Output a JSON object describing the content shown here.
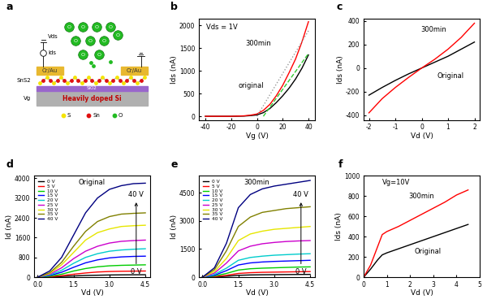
{
  "diagram": {
    "panel": "a",
    "labels": {
      "vds": "Vds",
      "ids": "Ids",
      "electrode": "Cr/Au",
      "channel": "SnS2",
      "oxide": "SiO2",
      "substrate": "Heavily doped Si",
      "vg": "Vg"
    },
    "molecule_label": "O",
    "atoms": [
      {
        "symbol": "S",
        "color": "#f5e400"
      },
      {
        "symbol": "Sn",
        "color": "#e01010"
      },
      {
        "symbol": "O",
        "color": "#22bb22"
      }
    ]
  },
  "chart_data": [
    {
      "panel": "b",
      "type": "line",
      "x_label": "Vg (V)",
      "y_label": "Ids (nA)",
      "xlim": [
        -45,
        45
      ],
      "ylim": [
        -80,
        2150
      ],
      "xticks": [
        -40,
        -20,
        0,
        20,
        40
      ],
      "yticks": [
        0,
        500,
        1000,
        1500,
        2000
      ],
      "annotations": [
        "Vds = 1V",
        "300min",
        "original"
      ],
      "series": [
        {
          "color": "#000000",
          "line_style": "solid",
          "x": [
            -40,
            -30,
            -20,
            -10,
            -5,
            0,
            5,
            10,
            15,
            20,
            25,
            30,
            35,
            40
          ],
          "values": [
            0,
            0,
            0,
            5,
            15,
            30,
            80,
            170,
            300,
            450,
            620,
            820,
            1060,
            1350
          ]
        },
        {
          "color": "#ff0000",
          "line_style": "solid",
          "x": [
            -40,
            -30,
            -20,
            -10,
            -5,
            0,
            5,
            10,
            15,
            20,
            25,
            30,
            35,
            40
          ],
          "values": [
            0,
            0,
            0,
            10,
            25,
            50,
            130,
            260,
            450,
            680,
            960,
            1260,
            1640,
            2080
          ]
        },
        {
          "color": "#33cc33",
          "line_style": "dashed",
          "x": [
            5,
            40
          ],
          "values": [
            0,
            1380
          ]
        },
        {
          "color": "#999999",
          "line_style": "dotted",
          "x": [
            0,
            40
          ],
          "values": [
            0,
            1880
          ]
        }
      ]
    },
    {
      "panel": "c",
      "type": "line",
      "x_label": "Vd (V)",
      "y_label": "Ids (nA)",
      "xlim": [
        -2.2,
        2.2
      ],
      "ylim": [
        -440,
        420
      ],
      "xticks": [
        -2,
        -1,
        0,
        1,
        2
      ],
      "yticks": [
        -400,
        -200,
        0,
        200,
        400
      ],
      "annotations": [
        "300min",
        "Original"
      ],
      "x": [
        -2,
        -1.5,
        -1,
        -0.5,
        0,
        0.5,
        1,
        1.5,
        2
      ],
      "series": [
        {
          "color": "#000000",
          "line_style": "solid",
          "values": [
            -230,
            -165,
            -105,
            -50,
            0,
            50,
            100,
            160,
            220
          ]
        },
        {
          "color": "#ff0000",
          "line_style": "solid",
          "values": [
            -380,
            -260,
            -165,
            -80,
            0,
            75,
            160,
            260,
            380
          ]
        }
      ]
    },
    {
      "panel": "d",
      "type": "line",
      "x_label": "Vd (V)",
      "y_label": "Id (nA)",
      "xlim": [
        -0.15,
        4.7
      ],
      "ylim": [
        0,
        4100
      ],
      "xticks": [
        {
          "value": 0,
          "label": "0.0"
        },
        1.5,
        {
          "value": 3,
          "label": "3.0"
        },
        4.5
      ],
      "yticks": [
        0,
        800,
        1600,
        2400,
        3200,
        4000
      ],
      "legend": "upper left",
      "annotations": [
        "Original",
        "0 V",
        "40 V"
      ],
      "x": [
        0,
        0.5,
        1,
        1.5,
        2,
        2.5,
        3,
        3.5,
        4,
        4.5
      ],
      "series": [
        {
          "name": "0 V",
          "color": "#000000",
          "values": [
            0,
            10,
            30,
            50,
            70,
            80,
            90,
            95,
            98,
            100
          ]
        },
        {
          "name": "5 V",
          "color": "#ff0000",
          "values": [
            0,
            20,
            60,
            120,
            170,
            210,
            230,
            240,
            245,
            250
          ]
        },
        {
          "name": "10 V",
          "color": "#00cc00",
          "values": [
            0,
            40,
            120,
            250,
            350,
            420,
            460,
            480,
            490,
            500
          ]
        },
        {
          "name": "15 V",
          "color": "#0000ff",
          "values": [
            0,
            70,
            200,
            400,
            580,
            700,
            780,
            820,
            840,
            850
          ]
        },
        {
          "name": "20 V",
          "color": "#00cccc",
          "values": [
            0,
            90,
            280,
            560,
            800,
            950,
            1050,
            1100,
            1130,
            1150
          ]
        },
        {
          "name": "25 V",
          "color": "#cc00cc",
          "values": [
            0,
            120,
            380,
            750,
            1050,
            1250,
            1380,
            1450,
            1480,
            1500
          ]
        },
        {
          "name": "30 V",
          "color": "#e6e600",
          "values": [
            0,
            150,
            500,
            1000,
            1500,
            1800,
            1950,
            2050,
            2080,
            2100
          ]
        },
        {
          "name": "35 V",
          "color": "#808000",
          "values": [
            0,
            180,
            600,
            1250,
            1850,
            2250,
            2450,
            2550,
            2580,
            2600
          ]
        },
        {
          "name": "40 V",
          "color": "#000080",
          "values": [
            0,
            250,
            800,
            1700,
            2600,
            3200,
            3550,
            3700,
            3780,
            3800
          ]
        }
      ]
    },
    {
      "panel": "e",
      "type": "line",
      "x_label": "Vd (V)",
      "y_label": "Id (nA)",
      "xlim": [
        -0.15,
        4.7
      ],
      "ylim": [
        0,
        5400
      ],
      "xticks": [
        {
          "value": 0,
          "label": "0.0"
        },
        1.5,
        {
          "value": 3,
          "label": "3.0"
        },
        4.5
      ],
      "yticks": [
        0,
        1500,
        3000,
        4500
      ],
      "legend": "upper left",
      "annotations": [
        "300min",
        "0 V",
        "40 V"
      ],
      "x": [
        0,
        0.5,
        1,
        1.5,
        2,
        2.5,
        3,
        3.5,
        4,
        4.5
      ],
      "series": [
        {
          "name": "0 V",
          "color": "#000000",
          "values": [
            0,
            15,
            50,
            100,
            120,
            130,
            135,
            140,
            145,
            150
          ]
        },
        {
          "name": "5 V",
          "color": "#ff0000",
          "values": [
            0,
            30,
            100,
            200,
            240,
            260,
            270,
            280,
            290,
            300
          ]
        },
        {
          "name": "10 V",
          "color": "#00cc00",
          "values": [
            0,
            60,
            200,
            380,
            450,
            480,
            500,
            520,
            540,
            550
          ]
        },
        {
          "name": "15 V",
          "color": "#0000ff",
          "values": [
            0,
            100,
            350,
            650,
            760,
            810,
            840,
            860,
            880,
            900
          ]
        },
        {
          "name": "20 V",
          "color": "#00cccc",
          "values": [
            0,
            150,
            480,
            900,
            1050,
            1120,
            1170,
            1200,
            1230,
            1250
          ]
        },
        {
          "name": "25 V",
          "color": "#cc00cc",
          "values": [
            0,
            220,
            750,
            1400,
            1650,
            1780,
            1850,
            1900,
            1930,
            1950
          ]
        },
        {
          "name": "30 V",
          "color": "#e6e600",
          "values": [
            0,
            300,
            1000,
            1950,
            2300,
            2450,
            2550,
            2600,
            2650,
            2700
          ]
        },
        {
          "name": "35 V",
          "color": "#808000",
          "values": [
            0,
            400,
            1400,
            2700,
            3200,
            3450,
            3550,
            3650,
            3700,
            3750
          ]
        },
        {
          "name": "40 V",
          "color": "#000080",
          "values": [
            0,
            500,
            1800,
            3700,
            4400,
            4700,
            4850,
            4950,
            5050,
            5150
          ]
        }
      ]
    },
    {
      "panel": "f",
      "type": "line",
      "x_label": "Vd (V)",
      "y_label": "Ids (nA)",
      "xlim": [
        0,
        5
      ],
      "ylim": [
        0,
        1000
      ],
      "xticks": [
        0,
        1,
        2,
        3,
        4,
        5
      ],
      "yticks": [
        0,
        200,
        400,
        600,
        800,
        1000
      ],
      "annotations": [
        "Vg=10V",
        "300min",
        "Original"
      ],
      "x": [
        0,
        0.3,
        0.6,
        0.8,
        1,
        1.5,
        2,
        2.5,
        3,
        3.5,
        4,
        4.5
      ],
      "series": [
        {
          "color": "#000000",
          "line_style": "solid",
          "values": [
            0,
            80,
            170,
            220,
            240,
            280,
            320,
            360,
            400,
            440,
            480,
            520
          ]
        },
        {
          "color": "#ff0000",
          "line_style": "solid",
          "values": [
            0,
            120,
            300,
            420,
            450,
            500,
            560,
            620,
            680,
            740,
            810,
            860
          ]
        }
      ]
    }
  ]
}
